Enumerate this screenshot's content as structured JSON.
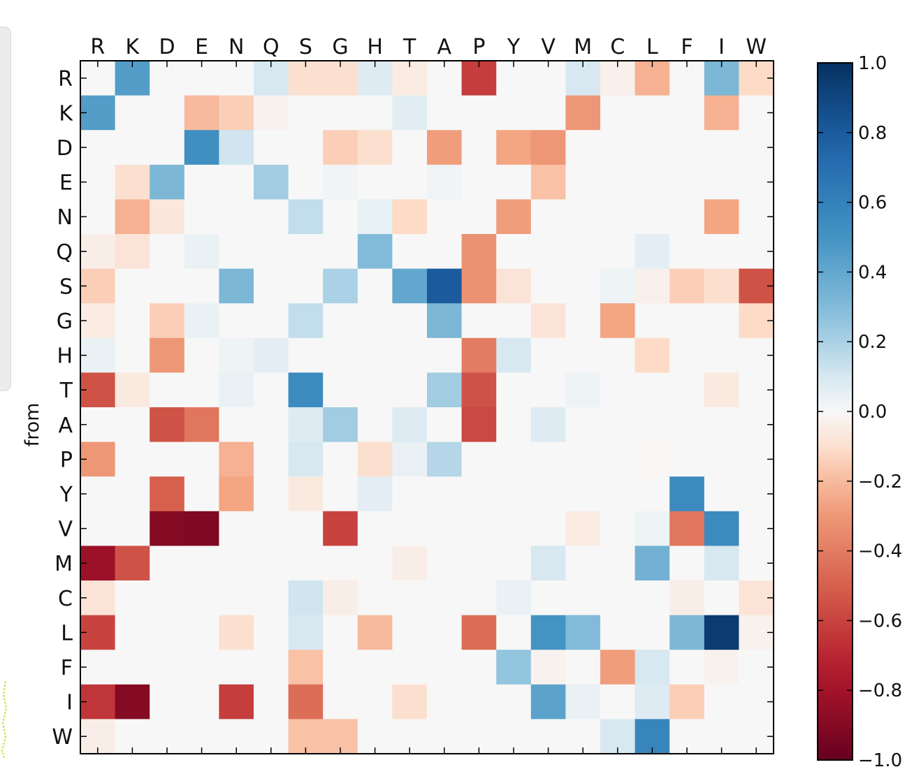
{
  "chart_data": {
    "type": "heatmap",
    "x_categories": [
      "R",
      "K",
      "D",
      "E",
      "N",
      "Q",
      "S",
      "G",
      "H",
      "T",
      "A",
      "P",
      "Y",
      "V",
      "M",
      "C",
      "L",
      "F",
      "I",
      "W"
    ],
    "y_categories": [
      "R",
      "K",
      "D",
      "E",
      "N",
      "Q",
      "S",
      "G",
      "H",
      "T",
      "A",
      "P",
      "Y",
      "V",
      "M",
      "C",
      "L",
      "F",
      "I",
      "W"
    ],
    "ylabel": "from",
    "xlabel": "",
    "title": "",
    "colormap": "RdBu",
    "vmin": -1.0,
    "vmax": 1.0,
    "colorbar_ticks": [
      1.0,
      0.8,
      0.6,
      0.4,
      0.2,
      0.0,
      -0.2,
      -0.4,
      -0.6,
      -0.8,
      -1.0
    ],
    "colorbar_tick_labels": [
      "1.0",
      "0.8",
      "0.6",
      "0.4",
      "0.2",
      "0.0",
      "−0.2",
      "−0.4",
      "−0.6",
      "−0.8",
      "−1.0"
    ],
    "grid": false,
    "values": [
      [
        0,
        0.45,
        0,
        0,
        0,
        0.1,
        -0.1,
        -0.1,
        0.08,
        -0.05,
        0,
        -0.62,
        0,
        0,
        0.1,
        -0.03,
        -0.22,
        0,
        0.32,
        -0.12
      ],
      [
        0.45,
        0,
        0,
        -0.2,
        -0.15,
        -0.02,
        0,
        0,
        0,
        0.07,
        0,
        0,
        0,
        0,
        -0.3,
        0,
        0,
        0,
        -0.22,
        0
      ],
      [
        0,
        0,
        0,
        0.52,
        0.12,
        0,
        0,
        -0.15,
        -0.1,
        0,
        -0.28,
        0,
        -0.25,
        -0.3,
        0,
        0,
        0,
        0,
        0,
        0
      ],
      [
        0,
        -0.1,
        0.32,
        0,
        0,
        0.22,
        0,
        0.02,
        0,
        0,
        0.02,
        0,
        0,
        -0.18,
        0,
        0,
        0,
        0,
        0,
        0
      ],
      [
        0,
        -0.22,
        -0.07,
        0,
        0,
        0,
        0.15,
        0,
        0.05,
        -0.12,
        0,
        0,
        -0.28,
        0,
        0,
        0,
        0,
        0,
        -0.25,
        0
      ],
      [
        -0.04,
        -0.08,
        0,
        0.04,
        0,
        0,
        0,
        0,
        0.3,
        0,
        0,
        -0.32,
        0,
        0,
        0,
        0,
        0.06,
        0,
        0,
        0
      ],
      [
        -0.15,
        0,
        0,
        0,
        0.32,
        0,
        0,
        0.2,
        0,
        0.4,
        0.8,
        -0.32,
        -0.08,
        0,
        0,
        0.03,
        -0.03,
        -0.15,
        -0.1,
        -0.55
      ],
      [
        -0.05,
        0,
        -0.15,
        0.04,
        0,
        0,
        0.15,
        0,
        0,
        0,
        0.32,
        0,
        0,
        -0.08,
        0,
        -0.25,
        0,
        0,
        0,
        -0.12
      ],
      [
        0.04,
        0,
        -0.3,
        0,
        0.03,
        0.06,
        0,
        0,
        0,
        0,
        0,
        -0.4,
        0.1,
        0,
        0,
        0,
        -0.12,
        0,
        0,
        0
      ],
      [
        -0.55,
        -0.06,
        0,
        0,
        0.04,
        0,
        0.55,
        0,
        0,
        0,
        0.22,
        -0.55,
        0,
        0,
        0.03,
        0,
        0,
        0,
        -0.06,
        0
      ],
      [
        0,
        0,
        -0.55,
        -0.42,
        0,
        0,
        0.08,
        0.22,
        0,
        0.08,
        0,
        -0.58,
        0,
        0.08,
        0,
        0,
        0,
        0,
        0,
        0
      ],
      [
        -0.3,
        0,
        0,
        0,
        -0.22,
        0,
        0.1,
        0,
        -0.1,
        0.04,
        0.18,
        0,
        0,
        0,
        0,
        0,
        -0.01,
        0,
        0,
        0
      ],
      [
        0,
        0,
        -0.5,
        0,
        -0.25,
        0,
        -0.06,
        0,
        0.06,
        0,
        0,
        0,
        0,
        0,
        0,
        0,
        0,
        0.55,
        0,
        0
      ],
      [
        0,
        0,
        -0.9,
        -0.92,
        0,
        0,
        0,
        -0.6,
        0,
        0,
        0,
        0,
        0,
        0,
        -0.05,
        0,
        0.03,
        -0.42,
        0.55,
        0
      ],
      [
        -0.82,
        -0.55,
        0,
        0,
        0,
        0,
        0,
        0,
        0,
        -0.04,
        0,
        0,
        0,
        0.1,
        0,
        0,
        0.35,
        0,
        0.1,
        0
      ],
      [
        -0.08,
        0,
        0,
        0,
        0,
        0,
        0.12,
        -0.04,
        0,
        0,
        0,
        0,
        0.04,
        0,
        0,
        0,
        0,
        -0.04,
        0,
        -0.08
      ],
      [
        -0.6,
        0,
        0,
        0,
        -0.1,
        0,
        0.1,
        0,
        -0.2,
        0,
        0,
        -0.45,
        0,
        0.5,
        0.3,
        0,
        0,
        0.32,
        0.95,
        -0.02
      ],
      [
        0,
        0,
        0,
        0,
        0,
        0,
        -0.18,
        0,
        0,
        0,
        0,
        0,
        0.25,
        -0.02,
        0,
        -0.28,
        0.1,
        0,
        -0.02,
        0
      ],
      [
        -0.65,
        -0.9,
        0,
        0,
        -0.62,
        0,
        -0.45,
        0,
        0,
        -0.1,
        0,
        0,
        0,
        0.42,
        0.04,
        0,
        0.08,
        -0.15,
        0,
        0
      ],
      [
        -0.04,
        0,
        0,
        0,
        0,
        0,
        -0.18,
        -0.18,
        0,
        0,
        0,
        0,
        0,
        0,
        0,
        0.1,
        0.58,
        0,
        0,
        0
      ]
    ]
  }
}
